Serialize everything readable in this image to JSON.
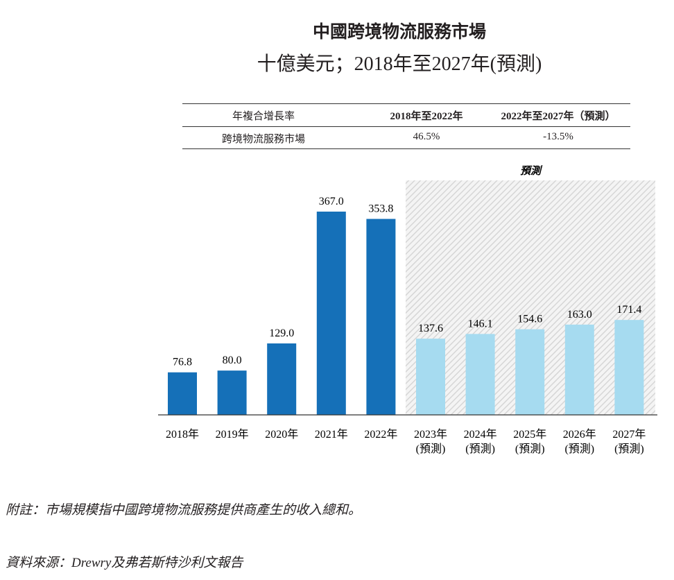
{
  "chart_data": {
    "type": "bar",
    "title": "中國跨境物流服務市場",
    "subtitle": "十億美元；2018年至2027年(預測)",
    "categories": [
      "2018年",
      "2019年",
      "2020年",
      "2021年",
      "2022年",
      "2023年\n(預測)",
      "2024年\n(預測)",
      "2025年\n(預測)",
      "2026年\n(預測)",
      "2027年\n(預測)"
    ],
    "values": [
      76.8,
      80.0,
      129.0,
      367.0,
      353.8,
      137.6,
      146.1,
      154.6,
      163.0,
      171.4
    ],
    "forecast": [
      false,
      false,
      false,
      false,
      false,
      true,
      true,
      true,
      true,
      true
    ],
    "forecast_label": "預測",
    "colors": {
      "actual": "#1570b8",
      "forecast": "#a6dbf0",
      "hatch": "#d9d9d9"
    },
    "ylim": [
      0,
      400
    ],
    "grid": false,
    "data_labels": [
      "76.8",
      "80.0",
      "129.0",
      "367.0",
      "353.8",
      "137.6",
      "146.1",
      "154.6",
      "163.0",
      "171.4"
    ]
  },
  "cagr_table": {
    "headers": [
      "年複合增長率",
      "2018年至2022年",
      "2022年至2027年（預測）"
    ],
    "rows": [
      [
        "跨境物流服務市場",
        "46.5%",
        "-13.5%"
      ]
    ]
  },
  "note": "附註：市場規模指中國跨境物流服務提供商產生的收入總和。",
  "source": "資料來源：Drewry及弗若斯特沙利文報告"
}
